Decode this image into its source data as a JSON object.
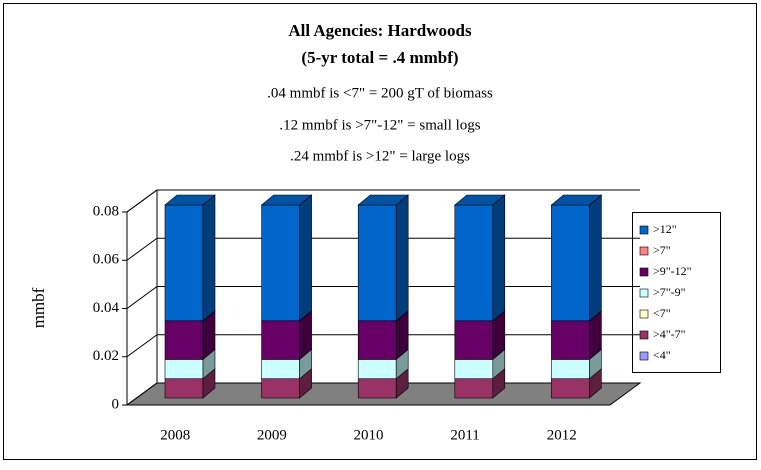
{
  "chart_data": {
    "type": "bar3d_stacked",
    "title": "All Agencies: Hardwoods",
    "subtitle": "(5-yr total = .4 mmbf)",
    "annotations": [
      ".04 mmbf is <7\" = 200 gT of biomass",
      ".12 mmbf is >7\"-12\" = small logs",
      ".24 mmbf is >12\" = large logs"
    ],
    "y_label": "mmbf",
    "categories": [
      "2008",
      "2009",
      "2010",
      "2011",
      "2012"
    ],
    "series": [
      {
        "name": "<4\"",
        "color": "#9999ff",
        "values": [
          0,
          0,
          0,
          0,
          0
        ]
      },
      {
        "name": ">4\"-7\"",
        "color": "#993366",
        "values": [
          0.008,
          0.008,
          0.008,
          0.008,
          0.008
        ]
      },
      {
        "name": "<7\"",
        "color": "#ffffcc",
        "values": [
          0,
          0,
          0,
          0,
          0
        ]
      },
      {
        "name": ">7\"-9\"",
        "color": "#ccffff",
        "values": [
          0.008,
          0.008,
          0.008,
          0.008,
          0.008
        ]
      },
      {
        "name": ">9\"-12\"",
        "color": "#660066",
        "values": [
          0.016,
          0.016,
          0.016,
          0.016,
          0.016
        ]
      },
      {
        "name": ">7\"",
        "color": "#ff8080",
        "values": [
          0,
          0,
          0,
          0,
          0
        ]
      },
      {
        "name": ">12\"",
        "color": "#0066cc",
        "values": [
          0.048,
          0.048,
          0.048,
          0.048,
          0.048
        ]
      }
    ],
    "ylim": [
      0,
      0.08
    ],
    "yticks": [
      0,
      0.02,
      0.04,
      0.06,
      0.08
    ],
    "grid": true,
    "legend": "right"
  }
}
